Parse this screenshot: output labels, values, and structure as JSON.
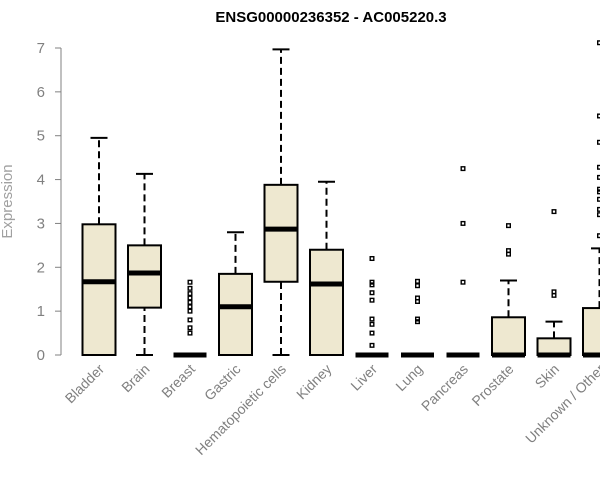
{
  "chart_data": {
    "type": "boxplot",
    "title": "ENSG00000236352 - AC005220.3",
    "ylabel": "Expression",
    "xlabel": "",
    "ylim": [
      0,
      7.2
    ],
    "yticks": [
      0,
      1,
      2,
      3,
      4,
      5,
      6,
      7
    ],
    "grid": false,
    "box_fill": "#eee8d0",
    "categories": [
      "Bladder",
      "Brain",
      "Breast",
      "Gastric",
      "Hematopoietic cells",
      "Kidney",
      "Liver",
      "Lung",
      "Pancreas",
      "Prostate",
      "Skin",
      "Unknown / Other"
    ],
    "boxes": [
      {
        "min": 0,
        "q1": 0,
        "median": 1.67,
        "q3": 2.98,
        "max": 4.95,
        "outliers": []
      },
      {
        "min": 0,
        "q1": 1.08,
        "median": 1.87,
        "q3": 2.5,
        "max": 4.13,
        "outliers": []
      },
      {
        "min": 0,
        "q1": 0,
        "median": 0,
        "q3": 0,
        "max": 0,
        "outliers": [
          0.5,
          0.62,
          0.8,
          1.0,
          1.1,
          1.2,
          1.3,
          1.4,
          1.52,
          1.66
        ]
      },
      {
        "min": 0,
        "q1": 0,
        "median": 1.1,
        "q3": 1.85,
        "max": 2.8,
        "outliers": []
      },
      {
        "min": 0,
        "q1": 1.67,
        "median": 2.87,
        "q3": 3.88,
        "max": 6.97,
        "outliers": []
      },
      {
        "min": 0,
        "q1": 0,
        "median": 1.62,
        "q3": 2.4,
        "max": 3.95,
        "outliers": []
      },
      {
        "min": 0,
        "q1": 0,
        "median": 0,
        "q3": 0,
        "max": 0,
        "outliers": [
          0.22,
          0.5,
          0.7,
          0.82,
          1.25,
          1.42,
          1.6,
          1.66,
          2.2
        ]
      },
      {
        "min": 0,
        "q1": 0,
        "median": 0,
        "q3": 0,
        "max": 0,
        "outliers": [
          0.76,
          0.82,
          1.22,
          1.3,
          1.58,
          1.68
        ]
      },
      {
        "min": 0,
        "q1": 0,
        "median": 0,
        "q3": 0,
        "max": 0,
        "outliers": [
          1.66,
          3.0,
          4.25
        ]
      },
      {
        "min": 0,
        "q1": 0,
        "median": 0,
        "q3": 0.86,
        "max": 1.7,
        "outliers": [
          2.3,
          2.38,
          2.95
        ]
      },
      {
        "min": 0,
        "q1": 0,
        "median": 0,
        "q3": 0.38,
        "max": 0.76,
        "outliers": [
          1.36,
          1.44,
          3.27
        ]
      },
      {
        "min": 0,
        "q1": 0,
        "median": 0,
        "q3": 1.07,
        "max": 2.43,
        "outliers": [
          2.72,
          3.2,
          3.32,
          3.55,
          3.72,
          3.78,
          4.05,
          4.28,
          4.85,
          5.45,
          7.12
        ]
      }
    ]
  }
}
